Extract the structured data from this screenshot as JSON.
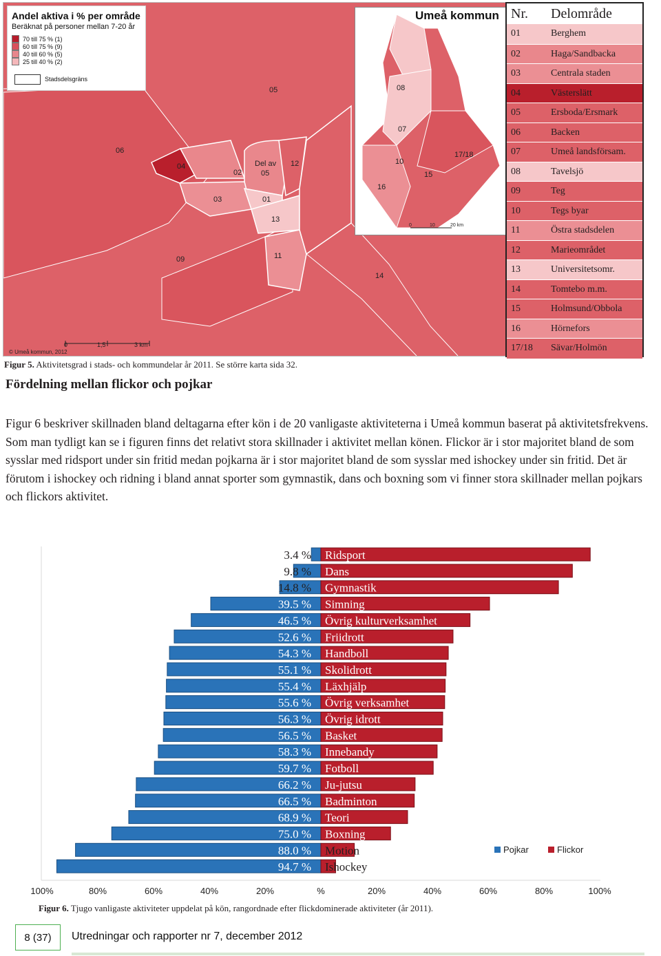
{
  "map": {
    "legend": {
      "title": "Andel aktiva i % per område",
      "subtitle": "Beräknat på personer mellan 7-20 år",
      "rows": [
        {
          "label": "70 till 75 %",
          "count": "(1)",
          "color": "#b71c2b"
        },
        {
          "label": "60 till 75 %",
          "count": "(9)",
          "color": "#d9505b"
        },
        {
          "label": "40 till 60 %",
          "count": "(5)",
          "color": "#e8868c"
        },
        {
          "label": "25 till 40 %",
          "count": "(2)",
          "color": "#f4b7ba"
        }
      ],
      "border_label": "Stadsdelsgräns"
    },
    "district_labels": [
      "05",
      "06",
      "04",
      "02",
      "Del av",
      "05",
      "12",
      "03",
      "01",
      "13",
      "09",
      "11",
      "14"
    ],
    "inset": {
      "title": "Umeå kommun",
      "labels": [
        "08",
        "07",
        "10",
        "16",
        "15",
        "17/18"
      ],
      "scale": [
        "0",
        "10",
        "20 km"
      ]
    },
    "scale": [
      "0",
      "1,5",
      "3 km"
    ],
    "copyright": "© Umeå kommun, 2012"
  },
  "table": {
    "header_nr": "Nr.",
    "header_name": "Delområde",
    "rows": [
      {
        "nr": "01",
        "name": "Berghem",
        "color": "#f6c7c9"
      },
      {
        "nr": "02",
        "name": "Haga/Sandbacka",
        "color": "#e9878c"
      },
      {
        "nr": "03",
        "name": "Centrala staden",
        "color": "#eb8f94"
      },
      {
        "nr": "04",
        "name": "Västerslätt",
        "color": "#b91f2c"
      },
      {
        "nr": "05",
        "name": "Ersboda/Ersmark",
        "color": "#dd6168"
      },
      {
        "nr": "06",
        "name": "Backen",
        "color": "#dd6168"
      },
      {
        "nr": "07",
        "name": "Umeå landsförsam.",
        "color": "#dd6168"
      },
      {
        "nr": "08",
        "name": "Tavelsjö",
        "color": "#f6c7c9"
      },
      {
        "nr": "09",
        "name": "Teg",
        "color": "#dd6168"
      },
      {
        "nr": "10",
        "name": "Tegs byar",
        "color": "#dd6168"
      },
      {
        "nr": "11",
        "name": "Östra stadsdelen",
        "color": "#eb8f94"
      },
      {
        "nr": "12",
        "name": "Marieområdet",
        "color": "#dd6168"
      },
      {
        "nr": "13",
        "name": "Universitetsomr.",
        "color": "#f6c7c9"
      },
      {
        "nr": "14",
        "name": "Tomtebo m.m.",
        "color": "#dd6168"
      },
      {
        "nr": "15",
        "name": "Holmsund/Obbola",
        "color": "#dd6168"
      },
      {
        "nr": "16",
        "name": "Hörnefors",
        "color": "#eb8f94"
      },
      {
        "nr": "17/18",
        "name": "Sävar/Holmön",
        "color": "#dd6168"
      }
    ]
  },
  "figure5_caption": {
    "label": "Figur 5.",
    "text": " Aktivitetsgrad i stads- och kommundelar år 2011. Se större karta sida 32."
  },
  "heading": "Fördelning mellan flickor och pojkar",
  "body": "Figur 6 beskriver skillnaden bland deltagarna efter kön i de 20 vanligaste aktiviteterna i Umeå kommun baserat på aktivitetsfrekvens. Som man tydligt kan se i figuren finns det relativt stora skillnader i aktivitet mellan könen. Flickor är i stor majoritet bland de som sysslar med ridsport under sin fritid medan pojkarna är i stor majoritet bland de som sysslar med ishockey under sin fritid. Det är förutom i ishockey och ridning i bland annat sporter som gymnastik, dans och boxning som vi finner stora skillnader mellan pojkars och flickors aktivitet.",
  "chart_data": {
    "type": "bar",
    "orientation": "horizontal-diverging",
    "categories": [
      "Ridsport",
      "Dans",
      "Gymnastik",
      "Simning",
      "Övrig kulturverksamhet",
      "Friidrott",
      "Handboll",
      "Skolidrott",
      "Läxhjälp",
      "Övrig verksamhet",
      "Övrig idrott",
      "Basket",
      "Innebandy",
      "Fotboll",
      "Ju-jutsu",
      "Badminton",
      "Teori",
      "Boxning",
      "Motion",
      "Ishockey"
    ],
    "series": [
      {
        "name": "Pojkar",
        "color": "#2a73b8",
        "values": [
          3.4,
          9.8,
          14.8,
          39.5,
          46.5,
          52.6,
          54.3,
          55.1,
          55.4,
          55.6,
          56.3,
          56.5,
          58.3,
          59.7,
          66.2,
          66.5,
          68.9,
          75.0,
          88.0,
          94.7
        ]
      },
      {
        "name": "Flickor",
        "color": "#b91f2c",
        "values": [
          96.6,
          90.2,
          85.2,
          60.5,
          53.5,
          47.4,
          45.7,
          44.9,
          44.6,
          44.4,
          43.7,
          43.5,
          41.7,
          40.3,
          33.8,
          33.5,
          31.1,
          25.0,
          12.0,
          5.3
        ]
      }
    ],
    "value_labels": [
      "3.4 %",
      "9.8 %",
      "14.8 %",
      "39.5 %",
      "46.5 %",
      "52.6 %",
      "54.3 %",
      "55.1 %",
      "55.4 %",
      "55.6 %",
      "56.3 %",
      "56.5 %",
      "58.3 %",
      "59.7 %",
      "66.2 %",
      "66.5 %",
      "68.9 %",
      "75.0 %",
      "88.0 %",
      "94.7 %"
    ],
    "x_ticks": [
      "100%",
      "80%",
      "60%",
      "40%",
      "20%",
      "%",
      "20%",
      "40%",
      "60%",
      "80%",
      "100%"
    ],
    "xlim": [
      -100,
      100
    ],
    "legend_position": "right"
  },
  "figure6_caption": {
    "label": "Figur 6.",
    "text": " Tjugo vanligaste aktiviteter uppdelat på kön, rangordnade efter flickdominerade aktiviteter (år 2011)."
  },
  "footer": {
    "page": "8 (37)",
    "title": "Utredningar och rapporter nr 7, december 2012"
  }
}
